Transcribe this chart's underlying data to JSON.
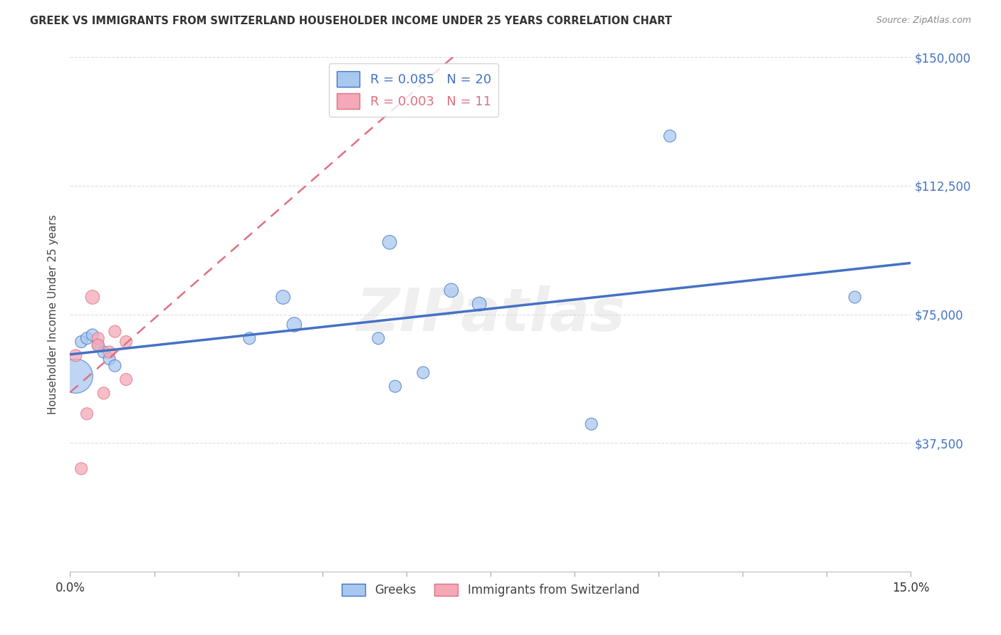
{
  "title": "GREEK VS IMMIGRANTS FROM SWITZERLAND HOUSEHOLDER INCOME UNDER 25 YEARS CORRELATION CHART",
  "source": "Source: ZipAtlas.com",
  "ylabel": "Householder Income Under 25 years",
  "xmin": 0.0,
  "xmax": 0.15,
  "ymin": 0,
  "ymax": 150000,
  "yticks": [
    0,
    37500,
    75000,
    112500,
    150000
  ],
  "xticks": [
    0.0,
    0.015,
    0.03,
    0.045,
    0.06,
    0.075,
    0.09,
    0.105,
    0.12,
    0.135,
    0.15
  ],
  "xtick_labels": [
    "0.0%",
    "",
    "",
    "",
    "",
    "",
    "",
    "",
    "",
    "",
    "15.0%"
  ],
  "greek_R": 0.085,
  "greek_N": 20,
  "swiss_R": 0.003,
  "swiss_N": 11,
  "blue_color": "#A8C8F0",
  "pink_color": "#F4A8B8",
  "blue_line_color": "#4472C4",
  "pink_line_color": "#E07080",
  "greek_points_x": [
    0.001,
    0.002,
    0.003,
    0.004,
    0.005,
    0.006,
    0.007,
    0.008,
    0.032,
    0.038,
    0.04,
    0.055,
    0.058,
    0.063,
    0.068,
    0.073,
    0.093,
    0.107,
    0.14,
    0.057
  ],
  "greek_points_y": [
    57000,
    67000,
    68000,
    69000,
    66000,
    64000,
    62000,
    60000,
    68000,
    80000,
    72000,
    68000,
    54000,
    58000,
    82000,
    78000,
    43000,
    127000,
    80000,
    96000
  ],
  "greek_sizes": [
    1200,
    150,
    150,
    150,
    150,
    150,
    150,
    150,
    150,
    200,
    220,
    150,
    150,
    150,
    200,
    200,
    150,
    150,
    150,
    200
  ],
  "swiss_points_x": [
    0.001,
    0.002,
    0.003,
    0.004,
    0.005,
    0.005,
    0.006,
    0.007,
    0.008,
    0.01,
    0.01
  ],
  "swiss_points_y": [
    63000,
    30000,
    46000,
    80000,
    68000,
    66000,
    52000,
    64000,
    70000,
    67000,
    56000
  ],
  "swiss_sizes": [
    150,
    150,
    150,
    200,
    150,
    150,
    150,
    150,
    150,
    150,
    150
  ],
  "watermark_text": "ZIPatlas",
  "background_color": "#FFFFFF",
  "grid_color": "#DDDDDD",
  "title_color": "#333333",
  "source_color": "#888888",
  "label_color": "#444444",
  "tick_color": "#4472C4"
}
